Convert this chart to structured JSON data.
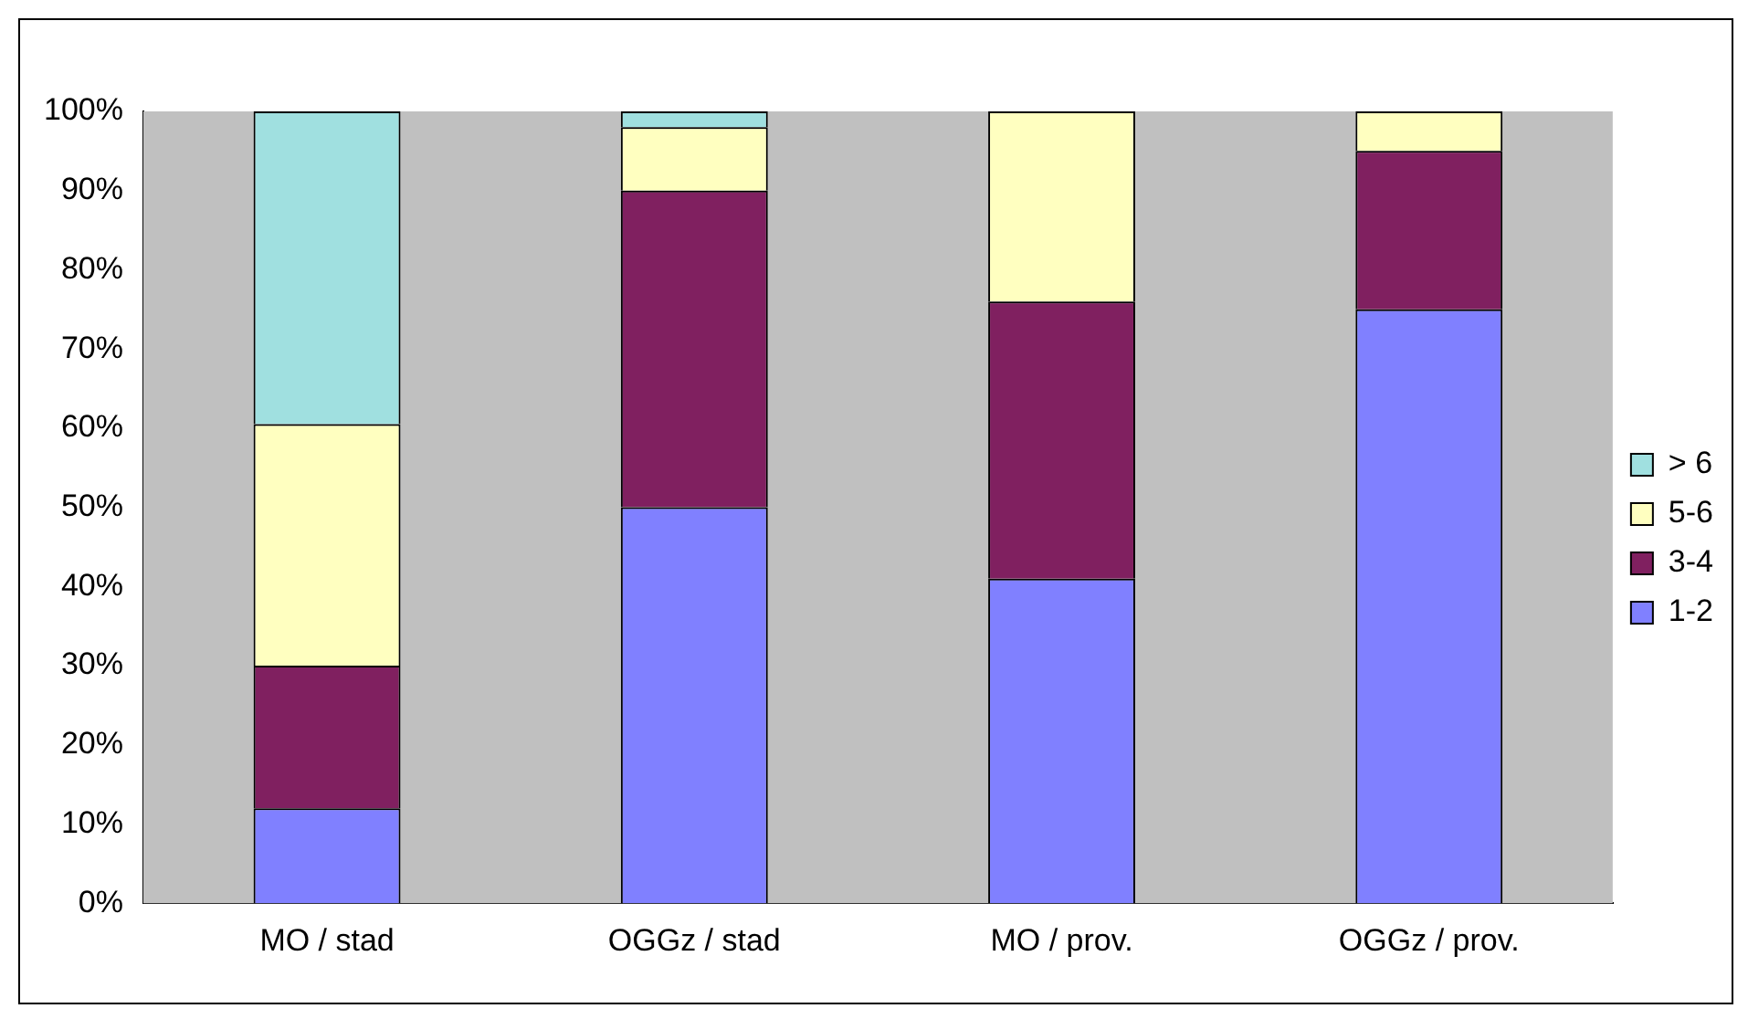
{
  "chart_data": {
    "type": "bar",
    "stacked": true,
    "categories": [
      "MO / stad",
      "OGGz / stad",
      "MO / prov.",
      "OGGz / prov."
    ],
    "series": [
      {
        "name": "1-2",
        "color": "#8080ff",
        "values": [
          12,
          50,
          41,
          75
        ]
      },
      {
        "name": "3-4",
        "color": "#802060",
        "values": [
          18,
          40,
          35,
          20
        ]
      },
      {
        "name": "5-6",
        "color": "#ffffc0",
        "values": [
          30.5,
          8,
          24,
          5
        ]
      },
      {
        "name": "> 6",
        "color": "#a0e0e0",
        "values": [
          39.5,
          2,
          0,
          0
        ]
      }
    ],
    "ylim": [
      0,
      100
    ],
    "yticks": [
      {
        "value": 0,
        "label": "0%"
      },
      {
        "value": 10,
        "label": "10%"
      },
      {
        "value": 20,
        "label": "20%"
      },
      {
        "value": 30,
        "label": "30%"
      },
      {
        "value": 40,
        "label": "40%"
      },
      {
        "value": 50,
        "label": "50%"
      },
      {
        "value": 60,
        "label": "60%"
      },
      {
        "value": 70,
        "label": "70%"
      },
      {
        "value": 80,
        "label": "80%"
      },
      {
        "value": 90,
        "label": "90%"
      },
      {
        "value": 100,
        "label": "100%"
      }
    ],
    "grid": false,
    "legend": "right"
  }
}
